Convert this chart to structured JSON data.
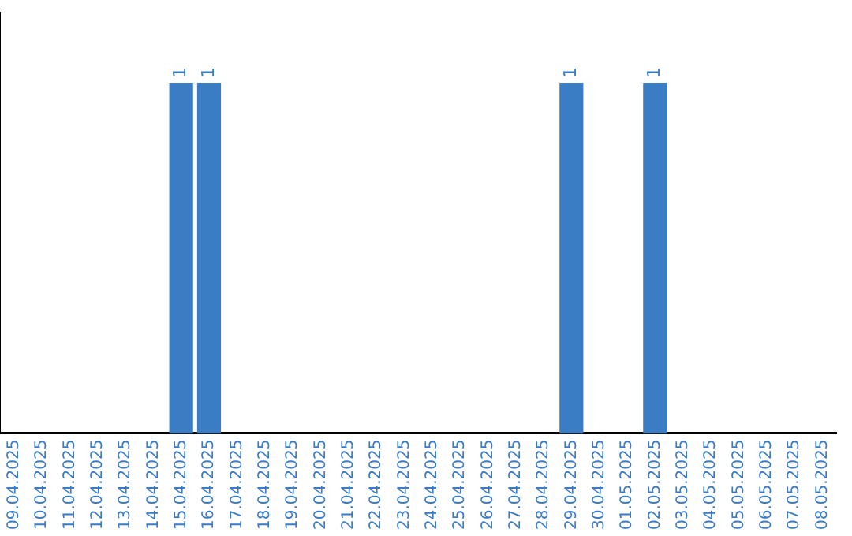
{
  "chart_data": {
    "type": "bar",
    "categories": [
      "09.04.2025",
      "10.04.2025",
      "11.04.2025",
      "12.04.2025",
      "13.04.2025",
      "14.04.2025",
      "15.04.2025",
      "16.04.2025",
      "17.04.2025",
      "18.04.2025",
      "19.04.2025",
      "20.04.2025",
      "21.04.2025",
      "22.04.2025",
      "23.04.2025",
      "24.04.2025",
      "25.04.2025",
      "26.04.2025",
      "27.04.2025",
      "28.04.2025",
      "29.04.2025",
      "30.04.2025",
      "01.05.2025",
      "02.05.2025",
      "03.05.2025",
      "04.05.2025",
      "05.05.2025",
      "06.05.2025",
      "07.05.2025",
      "08.05.2025"
    ],
    "values": [
      0,
      0,
      0,
      0,
      0,
      0,
      1,
      1,
      0,
      0,
      0,
      0,
      0,
      0,
      0,
      0,
      0,
      0,
      0,
      0,
      1,
      0,
      0,
      1,
      0,
      0,
      0,
      0,
      0,
      0
    ],
    "value_labels": [
      null,
      null,
      null,
      null,
      null,
      null,
      "1",
      "1",
      null,
      null,
      null,
      null,
      null,
      null,
      null,
      null,
      null,
      null,
      null,
      null,
      "1",
      null,
      null,
      "1",
      null,
      null,
      null,
      null,
      null,
      null
    ],
    "color": "#3b7dc4",
    "grid": false,
    "legend": false,
    "tick_labels": "x"
  }
}
